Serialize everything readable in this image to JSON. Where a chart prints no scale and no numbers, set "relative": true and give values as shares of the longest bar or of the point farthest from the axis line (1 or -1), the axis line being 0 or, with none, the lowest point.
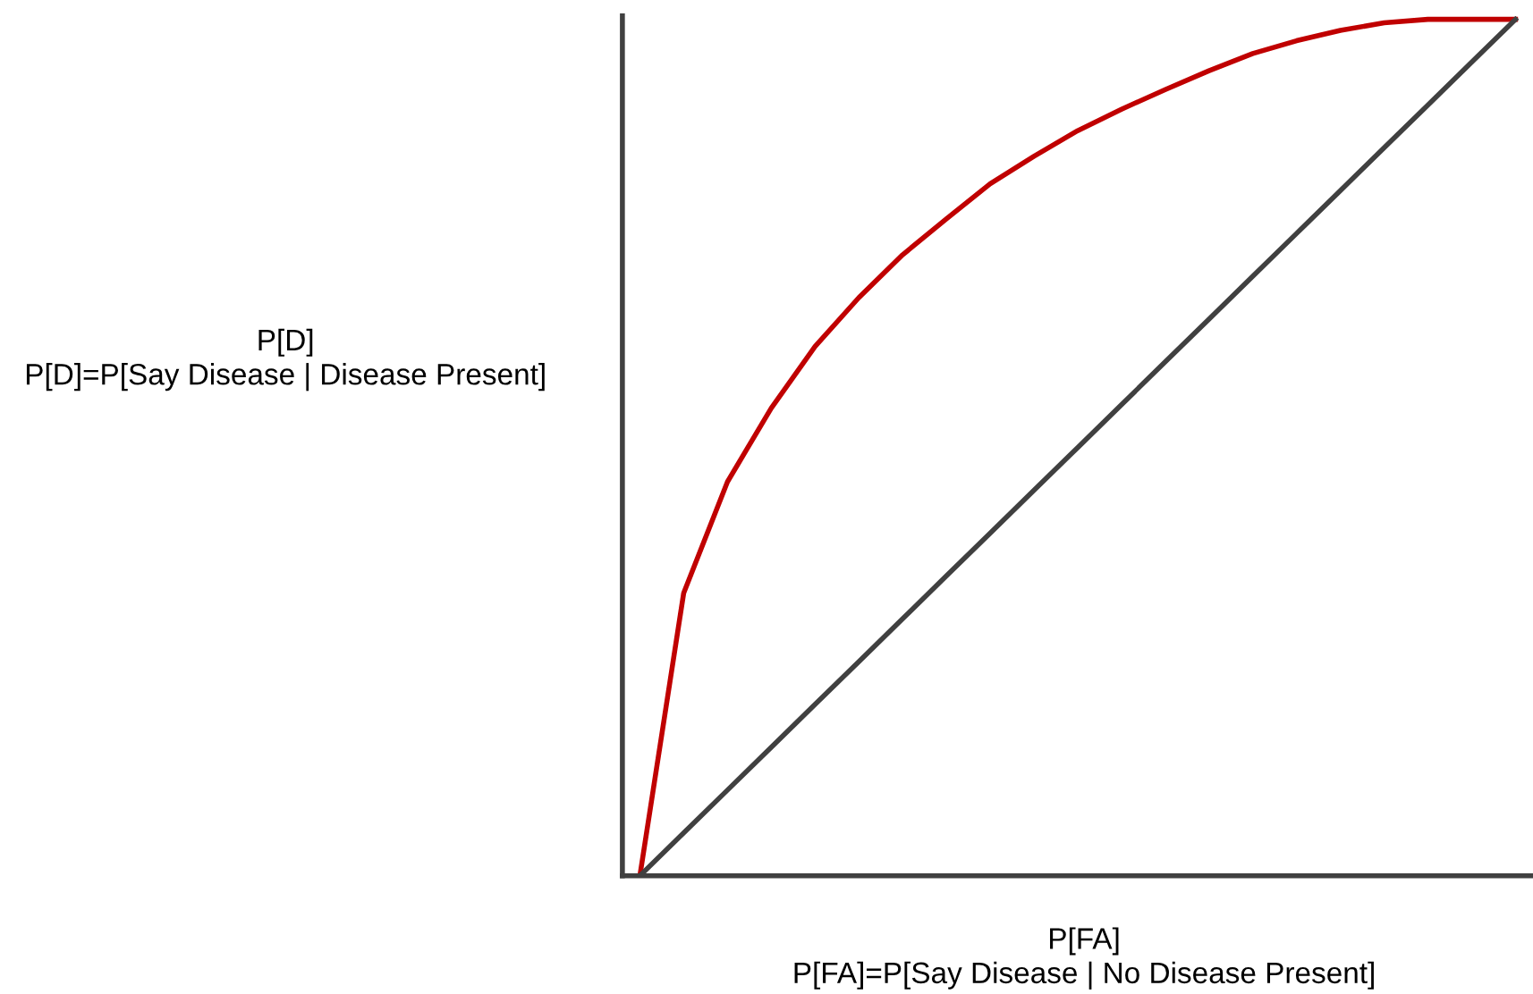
{
  "chart_data": {
    "type": "line",
    "relative": true,
    "xlabel": "P[FA]\nP[FA]=P[Say Disease | No Disease Present]",
    "ylabel": "P[D]\nP[D]=P[Say Disease | Disease Present]",
    "legend": false,
    "marker": "none",
    "line_style": "solid",
    "categories": [
      null,
      null,
      null,
      null,
      null,
      null,
      null,
      null,
      null,
      null,
      null,
      null,
      null,
      null,
      null,
      null,
      null,
      null,
      null,
      null,
      null
    ],
    "series": [
      {
        "color": "#c00000",
        "values": [
          0,
          0.33,
          0.46,
          0.546,
          0.618,
          0.675,
          0.725,
          0.767,
          0.808,
          0.84,
          0.87,
          0.895,
          0.918,
          0.94,
          0.96,
          0.975,
          0.987,
          0.996,
          1.0,
          1.0,
          1.0
        ]
      },
      {
        "color": "#404040",
        "values": [
          0,
          0.05,
          0.1,
          0.15,
          0.2,
          0.25,
          0.3,
          0.35,
          0.4,
          0.45,
          0.5,
          0.55,
          0.6,
          0.65,
          0.7,
          0.75,
          0.8,
          0.85,
          0.9,
          0.95,
          1.0
        ]
      }
    ]
  }
}
